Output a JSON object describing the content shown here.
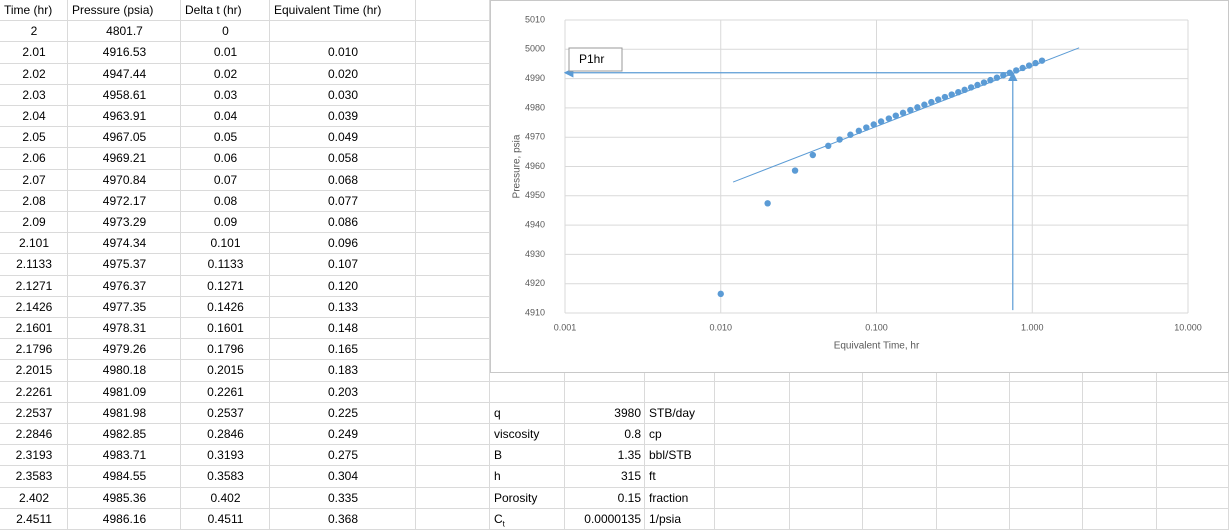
{
  "table": {
    "header": [
      "Time (hr)",
      "Pressure (psia)",
      "Delta t (hr)",
      "Equivalent Time (hr)"
    ],
    "rows": [
      [
        "2",
        "4801.7",
        "0"
      ],
      [
        "2.01",
        "4916.53",
        "0.01",
        "0.010"
      ],
      [
        "2.02",
        "4947.44",
        "0.02",
        "0.020"
      ],
      [
        "2.03",
        "4958.61",
        "0.03",
        "0.030"
      ],
      [
        "2.04",
        "4963.91",
        "0.04",
        "0.039"
      ],
      [
        "2.05",
        "4967.05",
        "0.05",
        "0.049"
      ],
      [
        "2.06",
        "4969.21",
        "0.06",
        "0.058"
      ],
      [
        "2.07",
        "4970.84",
        "0.07",
        "0.068"
      ],
      [
        "2.08",
        "4972.17",
        "0.08",
        "0.077"
      ],
      [
        "2.09",
        "4973.29",
        "0.09",
        "0.086"
      ],
      [
        "2.101",
        "4974.34",
        "0.101",
        "0.096"
      ],
      [
        "2.1133",
        "4975.37",
        "0.1133",
        "0.107"
      ],
      [
        "2.1271",
        "4976.37",
        "0.1271",
        "0.120"
      ],
      [
        "2.1426",
        "4977.35",
        "0.1426",
        "0.133"
      ],
      [
        "2.1601",
        "4978.31",
        "0.1601",
        "0.148"
      ],
      [
        "2.1796",
        "4979.26",
        "0.1796",
        "0.165"
      ],
      [
        "2.2015",
        "4980.18",
        "0.2015",
        "0.183"
      ],
      [
        "2.2261",
        "4981.09",
        "0.2261",
        "0.203"
      ],
      [
        "2.2537",
        "4981.98",
        "0.2537",
        "0.225"
      ],
      [
        "2.2846",
        "4982.85",
        "0.2846",
        "0.249"
      ],
      [
        "2.3193",
        "4983.71",
        "0.3193",
        "0.275"
      ],
      [
        "2.3583",
        "4984.55",
        "0.3583",
        "0.304"
      ],
      [
        "2.402",
        "4985.36",
        "0.402",
        "0.335"
      ],
      [
        "2.4511",
        "4986.16",
        "0.4511",
        "0.368"
      ]
    ]
  },
  "parameters": [
    {
      "label": "q",
      "value": "3980",
      "unit": "STB/day"
    },
    {
      "label": "viscosity",
      "value": "0.8",
      "unit": "cp"
    },
    {
      "label": "B",
      "value": "1.35",
      "unit": "bbl/STB"
    },
    {
      "label": "h",
      "value": "315",
      "unit": "ft"
    },
    {
      "label": "Porosity",
      "value": "0.15",
      "unit": "fraction"
    },
    {
      "label": "C",
      "label_sub": "t",
      "value": "0.0000135",
      "unit": "1/psia"
    }
  ],
  "chart_data": {
    "type": "scatter",
    "x_label": "Equivalent Time, hr",
    "y_label": "Pressure, psia",
    "log_x": true,
    "grid": true,
    "color": "#5b9bd5",
    "x": [
      0.01,
      0.02,
      0.03,
      0.039,
      0.049,
      0.058,
      0.068,
      0.077,
      0.086,
      0.096,
      0.107,
      0.12,
      0.133,
      0.148,
      0.165,
      0.183,
      0.203,
      0.225,
      0.249,
      0.275,
      0.304,
      0.335,
      0.368,
      0.405,
      0.445,
      0.49,
      0.539,
      0.593,
      0.652,
      0.717,
      0.789,
      0.868,
      0.955,
      1.05,
      1.155
    ],
    "y": [
      4916.53,
      4947.44,
      4958.61,
      4963.91,
      4967.05,
      4969.21,
      4970.84,
      4972.17,
      4973.29,
      4974.34,
      4975.37,
      4976.37,
      4977.35,
      4978.31,
      4979.26,
      4980.18,
      4981.09,
      4981.98,
      4982.85,
      4983.71,
      4984.55,
      4985.36,
      4986.16,
      4986.99,
      4987.82,
      4988.65,
      4989.48,
      4990.31,
      4991.14,
      4991.97,
      4992.8,
      4993.63,
      4994.46,
      4995.29,
      4996.12
    ],
    "xlim": [
      0.001,
      10
    ],
    "ylim": [
      4910,
      5010
    ],
    "xticks": [
      {
        "value": 0.001,
        "label": "0.001"
      },
      {
        "value": 0.01,
        "label": "0.010"
      },
      {
        "value": 0.1,
        "label": "0.100"
      },
      {
        "value": 1,
        "label": "1.000"
      },
      {
        "value": 10,
        "label": "10.000"
      }
    ],
    "yticks": [
      4910,
      4920,
      4930,
      4940,
      4950,
      4960,
      4970,
      4980,
      4990,
      5000,
      5010
    ],
    "trendline": {
      "x": [
        0.012,
        2.0
      ],
      "y": [
        4954.7,
        5000.5
      ]
    },
    "annotation": {
      "text": "P1hr",
      "x": 0.75,
      "y": 4992,
      "y_from": 4911,
      "x_to": 0.001
    }
  }
}
